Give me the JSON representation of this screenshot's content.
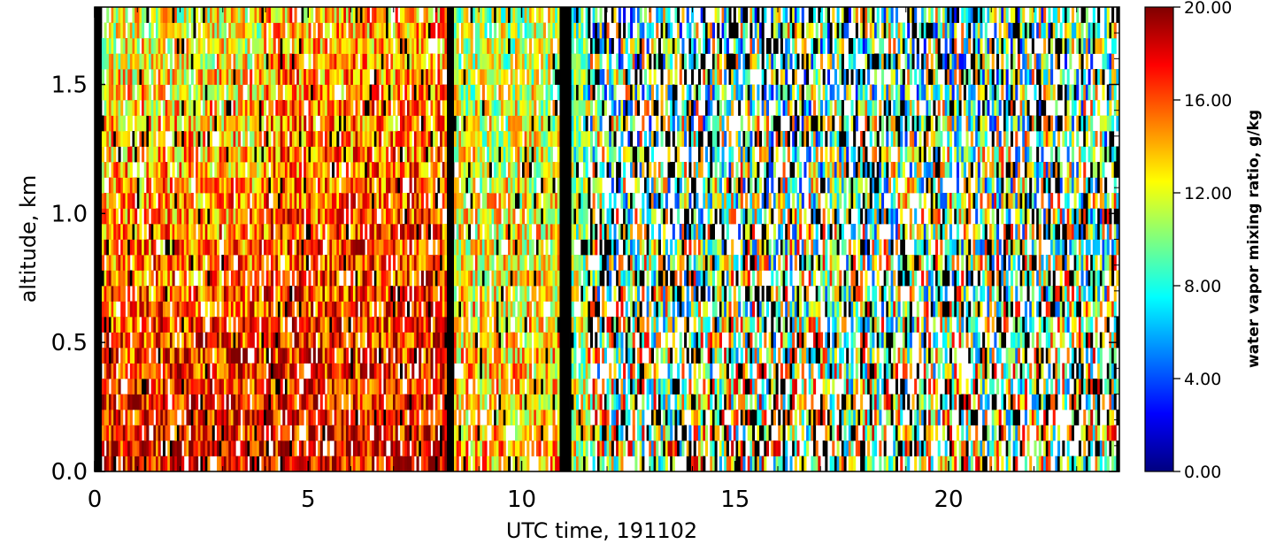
{
  "chart_data": {
    "type": "heatmap",
    "title": "",
    "xlabel": "UTC time, 191102",
    "ylabel": "altitude, km",
    "xlim": [
      0,
      24
    ],
    "ylim": [
      0.0,
      1.8
    ],
    "x_ticks": [
      {
        "value": 0,
        "label": "0"
      },
      {
        "value": 5,
        "label": "5"
      },
      {
        "value": 10,
        "label": "10"
      },
      {
        "value": 15,
        "label": "15"
      },
      {
        "value": 20,
        "label": "20"
      }
    ],
    "y_ticks": [
      {
        "value": 0.0,
        "label": "0.0"
      },
      {
        "value": 0.5,
        "label": "0.5"
      },
      {
        "value": 1.0,
        "label": "1.0"
      },
      {
        "value": 1.5,
        "label": "1.5"
      }
    ],
    "colorbar": {
      "label": "water vapor mixing ratio, g/kg",
      "range": [
        0.0,
        20.0
      ],
      "ticks": [
        {
          "value": 0,
          "label": "0.00"
        },
        {
          "value": 4,
          "label": "4.00"
        },
        {
          "value": 8,
          "label": "8.00"
        },
        {
          "value": 12,
          "label": "12.00"
        },
        {
          "value": 16,
          "label": "16.00"
        },
        {
          "value": 20,
          "label": "20.00"
        }
      ],
      "colormap": [
        "#00007f",
        "#0000ff",
        "#007fff",
        "#00ffff",
        "#7fff7f",
        "#ffff00",
        "#ff7f00",
        "#ff0000",
        "#7f0000"
      ]
    },
    "no_data_gaps_hours": [
      [
        0.0,
        0.15
      ],
      [
        8.2,
        8.4
      ],
      [
        10.85,
        11.15
      ]
    ],
    "altitude_bins": 30,
    "regimes": [
      {
        "from_hour": 0.0,
        "to_hour": 4.0,
        "typical_low_altitude_value": 18,
        "typical_high_altitude_value": 12
      },
      {
        "from_hour": 4.0,
        "to_hour": 8.2,
        "typical_low_altitude_value": 18,
        "typical_high_altitude_value": 14
      },
      {
        "from_hour": 8.4,
        "to_hour": 11.0,
        "typical_low_altitude_value": 14,
        "typical_high_altitude_value": 11
      },
      {
        "from_hour": 11.0,
        "to_hour": 24.0,
        "typical_low_altitude_value": 12,
        "typical_high_altitude_value": 9
      }
    ]
  }
}
